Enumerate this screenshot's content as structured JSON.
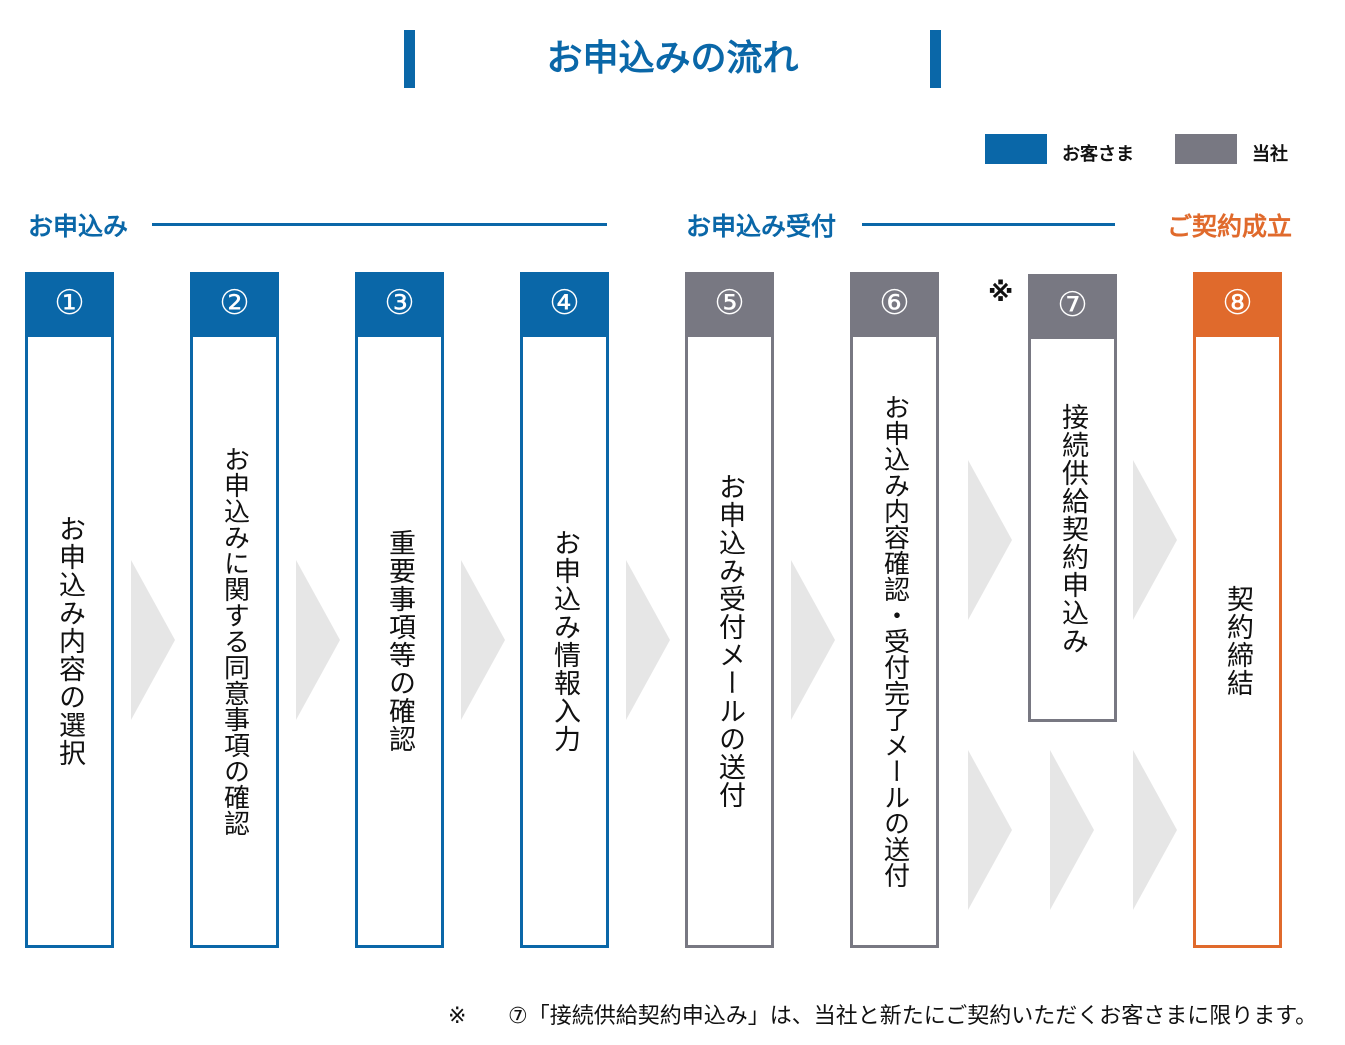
{
  "title": "お申込みの流れ",
  "legend": {
    "customer": {
      "label": "お客さま",
      "color": "#0a67a8"
    },
    "company": {
      "label": "当社",
      "color": "#787882"
    }
  },
  "phases": {
    "apply": {
      "label": "お申込み",
      "color": "#0a67a8"
    },
    "accept": {
      "label": "お申込み受付",
      "color": "#0a67a8"
    },
    "contract": {
      "label": "ご契約成立",
      "color": "#e06a2c"
    }
  },
  "steps": [
    {
      "number": "①",
      "text": "お申込み内容の選択",
      "owner": "customer"
    },
    {
      "number": "②",
      "text": "お申込みに関する同意事項の確認",
      "owner": "customer"
    },
    {
      "number": "③",
      "text": "重要事項等の確認",
      "owner": "customer"
    },
    {
      "number": "④",
      "text": "お申込み情報入力",
      "owner": "customer"
    },
    {
      "number": "⑤",
      "text": "お申込み受付メールの送付",
      "owner": "company"
    },
    {
      "number": "⑥",
      "text": "お申込み内容確認・受付完了メールの送付",
      "owner": "company"
    },
    {
      "number": "⑦",
      "text": "接続供給契約申込み",
      "owner": "company",
      "note": "※"
    },
    {
      "number": "⑧",
      "text": "契約締結",
      "owner": "contract"
    }
  ],
  "colors": {
    "customer": "#0a67a8",
    "company": "#787882",
    "contract": "#e06a2c",
    "arrow": "#e6e6e6"
  },
  "footnote": {
    "mark": "※",
    "text": "⑦「接続供給契約申込み」は、当社と新たにご契約いただくお客さまに限ります。"
  }
}
